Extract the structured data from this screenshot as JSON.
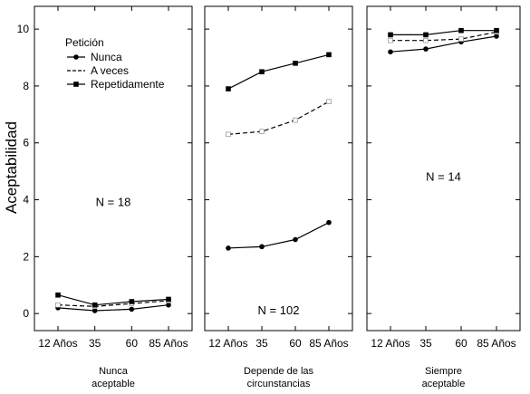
{
  "chart_data": {
    "type": "line",
    "ylabel": "Aceptabilidad",
    "ylim": [
      -0.6,
      10.8
    ],
    "yticks": [
      "0",
      "2",
      "4",
      "6",
      "8",
      "10"
    ],
    "ytick_values": [
      0,
      2,
      4,
      6,
      8,
      10
    ],
    "x": [
      "12 Años",
      "35",
      "60",
      "85 Años"
    ],
    "grid": false,
    "legend": {
      "title": "Petición",
      "placement": "top-left of first panel",
      "entries": [
        "Nunca",
        "A veces",
        "Repetidamente"
      ]
    },
    "series_styles": [
      {
        "name": "Nunca",
        "line": "solid",
        "marker": "circle",
        "color": "#000000"
      },
      {
        "name": "A veces",
        "line": "dashed",
        "marker": "open-square",
        "color": "#000000"
      },
      {
        "name": "Repetidamente",
        "line": "solid",
        "marker": "square",
        "color": "#000000"
      }
    ],
    "panels": [
      {
        "group": [
          "Nunca",
          "aceptable"
        ],
        "n_label": "N = 18",
        "n_at": {
          "x": 1.5,
          "y": 3.9
        },
        "series": [
          {
            "name": "Nunca",
            "values": [
              0.2,
              0.1,
              0.15,
              0.3
            ]
          },
          {
            "name": "A veces",
            "values": [
              0.3,
              0.25,
              0.35,
              0.45
            ]
          },
          {
            "name": "Repetidamente",
            "values": [
              0.65,
              0.3,
              0.42,
              0.5
            ]
          }
        ]
      },
      {
        "group": [
          "Depende de las",
          "circunstancias"
        ],
        "n_label": "N = 102",
        "n_at": {
          "x": 1.5,
          "y": 0.1
        },
        "series": [
          {
            "name": "Nunca",
            "values": [
              2.3,
              2.35,
              2.6,
              3.2
            ]
          },
          {
            "name": "A veces",
            "values": [
              6.3,
              6.4,
              6.8,
              7.45
            ]
          },
          {
            "name": "Repetidamente",
            "values": [
              7.9,
              8.5,
              8.8,
              9.1
            ]
          }
        ]
      },
      {
        "group": [
          "Siempre",
          "aceptable"
        ],
        "n_label": "N = 14",
        "n_at": {
          "x": 1.5,
          "y": 4.8
        },
        "series": [
          {
            "name": "Nunca",
            "values": [
              9.2,
              9.3,
              9.55,
              9.75
            ]
          },
          {
            "name": "A veces",
            "values": [
              9.6,
              9.6,
              9.65,
              9.9
            ]
          },
          {
            "name": "Repetidamente",
            "values": [
              9.8,
              9.8,
              9.95,
              9.95
            ]
          }
        ]
      }
    ]
  }
}
